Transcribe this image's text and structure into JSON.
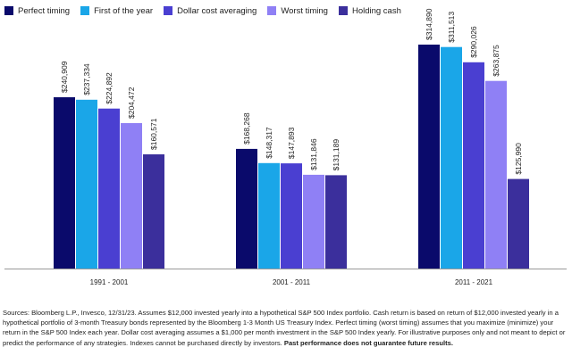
{
  "chart_data": {
    "type": "bar",
    "title": "",
    "xlabel": "",
    "ylabel": "",
    "ylim": [
      0,
      340000
    ],
    "categories": [
      "1991 - 2001",
      "2001 - 2011",
      "2011 - 2021"
    ],
    "series": [
      {
        "name": "Perfect timing",
        "color": "#0a0a6b",
        "values": [
          240909,
          168268,
          314890
        ],
        "labels": [
          "$240,909",
          "$168,268",
          "$314,890"
        ]
      },
      {
        "name": "First of the year",
        "color": "#1aa6e8",
        "values": [
          237334,
          148317,
          311513
        ],
        "labels": [
          "$237,334",
          "$148,317",
          "$311,513"
        ]
      },
      {
        "name": "Dollar cost averaging",
        "color": "#4a3fd1",
        "values": [
          224892,
          147893,
          290026
        ],
        "labels": [
          "$224,892",
          "$147,893",
          "$290,026"
        ]
      },
      {
        "name": "Worst timing",
        "color": "#8f80f5",
        "values": [
          204472,
          131846,
          263875
        ],
        "labels": [
          "$204,472",
          "$131,846",
          "$263,875"
        ]
      },
      {
        "name": "Holding cash",
        "color": "#3b2f9c",
        "values": [
          160571,
          131189,
          125990
        ],
        "labels": [
          "$160,571",
          "$131,189",
          "$125,990"
        ]
      }
    ]
  },
  "footnote": {
    "text": "Sources: Bloomberg L.P., Invesco, 12/31/23. Assumes $12,000 invested yearly into a hypothetical S&P 500 Index portfolio. Cash return is based on return of $12,000 invested yearly in a hypothetical portfolio of 3-month Treasury bonds represented by the Bloomberg 1-3 Month US Treasury Index. Perfect timing (worst timing) assumes that you maximize (minimize) your return in the S&P 500 Index each year. Dollar cost averaging assumes a $1,000 per month investment in the S&P 500 Index yearly. For illustrative purposes only and not meant to depict or predict the performance of any strategies. Indexes cannot be purchased directly by investors. ",
    "bold": "Past performance does not guarantee future results."
  }
}
